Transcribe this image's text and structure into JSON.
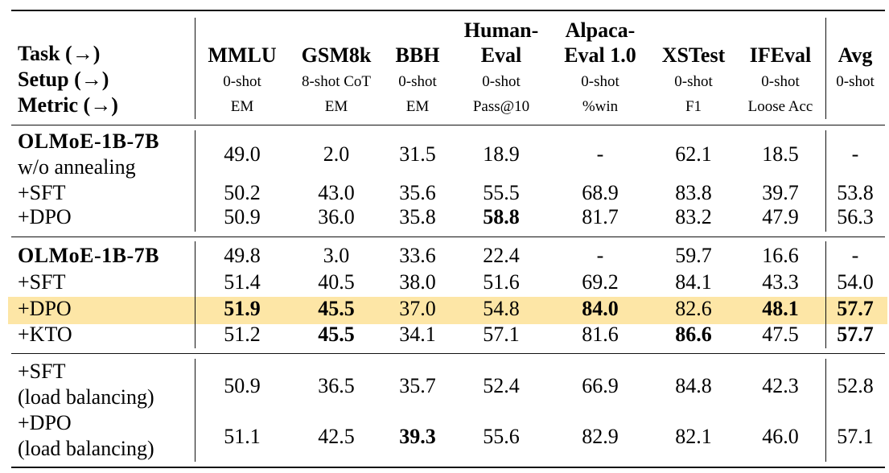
{
  "header": {
    "row_labels": [
      "Task (→)",
      "Setup (→)",
      "Metric (→)"
    ],
    "columns": [
      {
        "task_line1": "",
        "task_line2": "MMLU",
        "setup": "0-shot",
        "metric": "EM"
      },
      {
        "task_line1": "",
        "task_line2": "GSM8k",
        "setup": "8-shot CoT",
        "metric": "EM"
      },
      {
        "task_line1": "",
        "task_line2": "BBH",
        "setup": "0-shot",
        "metric": "EM"
      },
      {
        "task_line1": "Human-",
        "task_line2": "Eval",
        "setup": "0-shot",
        "metric": "Pass@10"
      },
      {
        "task_line1": "Alpaca-",
        "task_line2": "Eval 1.0",
        "setup": "0-shot",
        "metric": "%win"
      },
      {
        "task_line1": "",
        "task_line2": "XSTest",
        "setup": "0-shot",
        "metric": "F1"
      },
      {
        "task_line1": "",
        "task_line2": "IFEval",
        "setup": "0-shot",
        "metric": "Loose Acc"
      },
      {
        "task_line1": "",
        "task_line2": "Avg",
        "setup": "0-shot",
        "metric": ""
      }
    ]
  },
  "sections": [
    {
      "rows": [
        {
          "label_line1": "OLMoE-1B-7B",
          "label_line2": "w/o annealing",
          "label_bold": true,
          "values": [
            "49.0",
            "2.0",
            "31.5",
            "18.9",
            "-",
            "62.1",
            "18.5",
            "-"
          ],
          "bold": []
        },
        {
          "label_line1": "+SFT",
          "label_line2": "",
          "values": [
            "50.2",
            "43.0",
            "35.6",
            "55.5",
            "68.9",
            "83.8",
            "39.7",
            "53.8"
          ],
          "bold": []
        },
        {
          "label_line1": "+DPO",
          "label_line2": "",
          "values": [
            "50.9",
            "36.0",
            "35.8",
            "58.8",
            "81.7",
            "83.2",
            "47.9",
            "56.3"
          ],
          "bold": [
            3
          ]
        }
      ]
    },
    {
      "rows": [
        {
          "label_line1": "OLMoE-1B-7B",
          "label_line2": "",
          "label_bold": true,
          "values": [
            "49.8",
            "3.0",
            "33.6",
            "22.4",
            "-",
            "59.7",
            "16.6",
            "-"
          ],
          "bold": []
        },
        {
          "label_line1": "+SFT",
          "label_line2": "",
          "values": [
            "51.4",
            "40.5",
            "38.0",
            "51.6",
            "69.2",
            "84.1",
            "43.3",
            "54.0"
          ],
          "bold": []
        },
        {
          "label_line1": "+DPO",
          "label_line2": "",
          "highlight": true,
          "values": [
            "51.9",
            "45.5",
            "37.0",
            "54.8",
            "84.0",
            "82.6",
            "48.1",
            "57.7"
          ],
          "bold": [
            0,
            1,
            4,
            6,
            7
          ]
        },
        {
          "label_line1": "+KTO",
          "label_line2": "",
          "values": [
            "51.2",
            "45.5",
            "34.1",
            "57.1",
            "81.6",
            "86.6",
            "47.5",
            "57.7"
          ],
          "bold": [
            1,
            5,
            7
          ]
        }
      ]
    },
    {
      "rows": [
        {
          "label_line1": "+SFT",
          "label_line2": "(load balancing)",
          "values": [
            "50.9",
            "36.5",
            "35.7",
            "52.4",
            "66.9",
            "84.8",
            "42.3",
            "52.8"
          ],
          "bold": []
        },
        {
          "label_line1": "+DPO",
          "label_line2": "(load balancing)",
          "values": [
            "51.1",
            "42.5",
            "39.3",
            "55.6",
            "82.9",
            "82.1",
            "46.0",
            "57.1"
          ],
          "bold": [
            2
          ]
        }
      ]
    }
  ]
}
